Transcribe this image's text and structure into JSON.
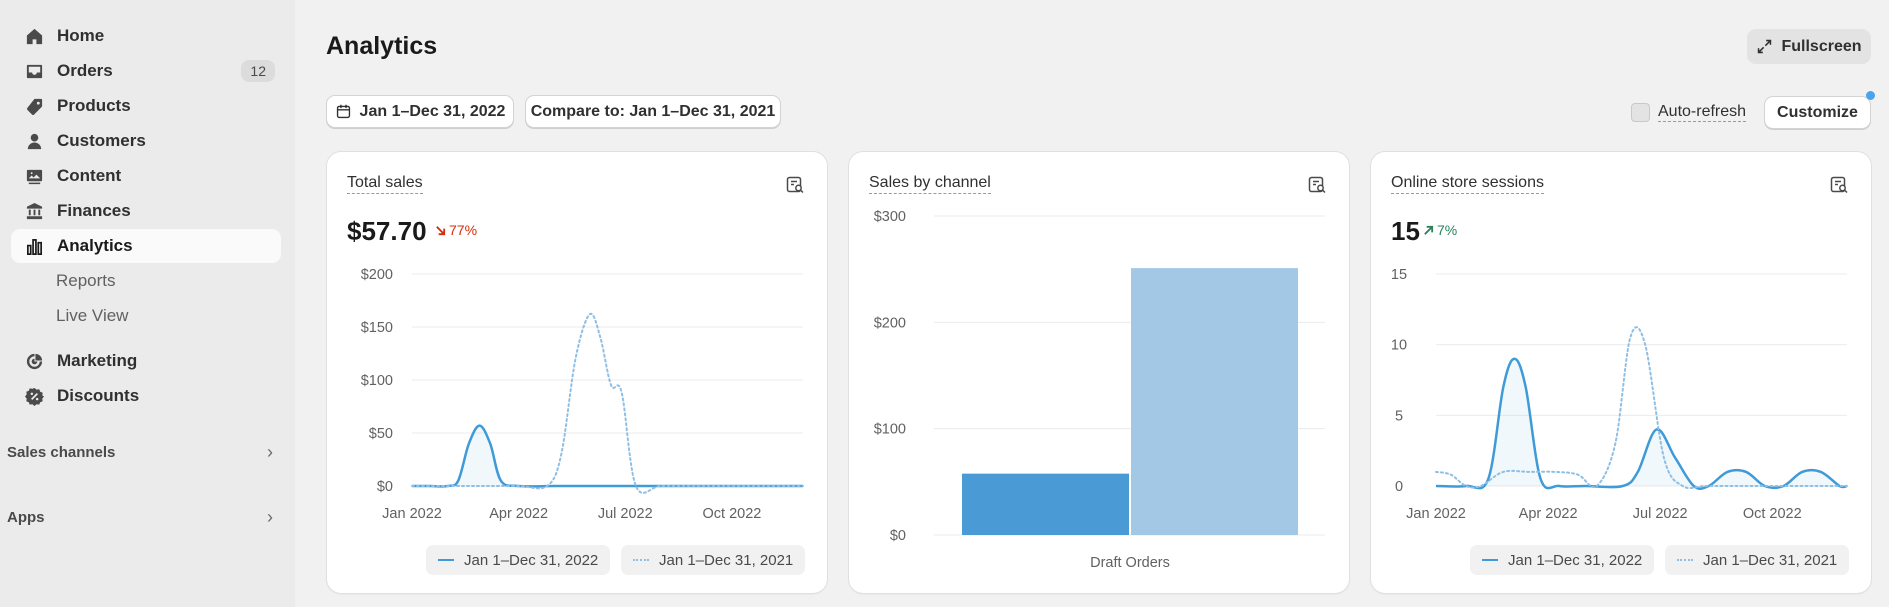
{
  "sidebar": {
    "items": [
      {
        "label": "Home",
        "icon": "home-icon"
      },
      {
        "label": "Orders",
        "icon": "inbox-icon",
        "badge": "12"
      },
      {
        "label": "Products",
        "icon": "tag-icon"
      },
      {
        "label": "Customers",
        "icon": "person-icon"
      },
      {
        "label": "Content",
        "icon": "image-icon"
      },
      {
        "label": "Finances",
        "icon": "bank-icon"
      },
      {
        "label": "Analytics",
        "icon": "bar-chart-icon",
        "active": true
      }
    ],
    "subitems": [
      "Reports",
      "Live View"
    ],
    "items2": [
      {
        "label": "Marketing",
        "icon": "target-icon"
      },
      {
        "label": "Discounts",
        "icon": "discount-icon"
      }
    ],
    "sections": [
      "Sales channels",
      "Apps"
    ]
  },
  "header": {
    "title": "Analytics",
    "fullscreen_label": "Fullscreen",
    "date_range_label": "Jan 1–Dec 31, 2022",
    "compare_label": "Compare to: Jan 1–Dec 31, 2021",
    "auto_refresh_label": "Auto-refresh",
    "auto_refresh_checked": false,
    "customize_label": "Customize"
  },
  "colors": {
    "primary_series": "#3f9ad8",
    "comparison_series": "#8fbfe4",
    "bar_primary": "#4a9ad6",
    "bar_secondary": "#a3c8e6",
    "negative": "#d72c0d",
    "positive": "#29845a"
  },
  "cards": {
    "total_sales": {
      "title": "Total sales",
      "value": "$57.70",
      "delta": "77%",
      "delta_direction": "down"
    },
    "sales_by_channel": {
      "title": "Sales by channel"
    },
    "sessions": {
      "title": "Online store sessions",
      "value": "15",
      "delta": "7%",
      "delta_direction": "up"
    },
    "legend": {
      "current": "Jan 1–Dec 31, 2022",
      "previous": "Jan 1–Dec 31, 2021"
    }
  },
  "chart_data": [
    {
      "type": "line",
      "title": "Total sales",
      "xlabel": "",
      "ylabel": "",
      "x_ticks": [
        "Jan 2022",
        "Apr 2022",
        "Jul 2022",
        "Oct 2022"
      ],
      "y_ticks": [
        "$0",
        "$50",
        "$100",
        "$150",
        "$200"
      ],
      "ylim": [
        0,
        200
      ],
      "grid": true,
      "series": [
        {
          "name": "Jan 1–Dec 31, 2022",
          "style": "solid",
          "x": [
            0,
            0.5,
            1,
            1.3,
            1.6,
            1.9,
            2.2,
            2.5,
            3,
            4,
            5,
            6,
            7,
            8,
            9,
            10,
            11
          ],
          "y": [
            0,
            0,
            0,
            5,
            40,
            57,
            40,
            5,
            0,
            0,
            0,
            0,
            0,
            0,
            0,
            0,
            0
          ]
        },
        {
          "name": "Jan 1–Dec 31, 2021",
          "style": "dotted",
          "x": [
            0,
            1,
            2,
            3,
            3.8,
            4.2,
            4.6,
            5.0,
            5.3,
            5.6,
            5.9,
            6.3,
            7,
            8,
            9,
            10,
            11
          ],
          "y": [
            0,
            0,
            0,
            0,
            0,
            30,
            120,
            162,
            140,
            95,
            88,
            0,
            0,
            0,
            0,
            0,
            0
          ]
        }
      ]
    },
    {
      "type": "bar",
      "title": "Sales by channel",
      "categories": [
        "Draft Orders"
      ],
      "y_ticks": [
        "$0",
        "$100",
        "$200",
        "$300"
      ],
      "ylim": [
        0,
        300
      ],
      "grid": true,
      "series": [
        {
          "name": "Jan 1–Dec 31, 2022",
          "values": [
            57.7
          ]
        },
        {
          "name": "Jan 1–Dec 31, 2021",
          "values": [
            251
          ]
        }
      ]
    },
    {
      "type": "line",
      "title": "Online store sessions",
      "xlabel": "",
      "ylabel": "",
      "x_ticks": [
        "Jan 2022",
        "Apr 2022",
        "Jul 2022",
        "Oct 2022"
      ],
      "y_ticks": [
        "0",
        "5",
        "10",
        "15"
      ],
      "ylim": [
        0,
        15
      ],
      "grid": true,
      "series": [
        {
          "name": "Jan 1–Dec 31, 2022",
          "style": "solid",
          "x": [
            0,
            0.8,
            1.4,
            1.8,
            2.1,
            2.4,
            2.8,
            3.3,
            4,
            5,
            5.4,
            5.9,
            6.4,
            6.9,
            7.3,
            7.8,
            8.3,
            8.8,
            9.3,
            9.8,
            10.3,
            10.8,
            11
          ],
          "y": [
            0,
            0,
            0.5,
            7,
            9,
            7,
            0.5,
            0,
            0,
            0,
            1,
            4,
            2,
            0,
            0,
            1,
            1,
            0,
            0,
            1,
            1,
            0,
            0
          ]
        },
        {
          "name": "Jan 1–Dec 31, 2021",
          "style": "dotted",
          "x": [
            0,
            0.4,
            0.8,
            1.2,
            1.8,
            2.5,
            3.2,
            3.8,
            4.3,
            4.8,
            5.2,
            5.6,
            6.1,
            6.6,
            7.2,
            8,
            9,
            10,
            11
          ],
          "y": [
            1,
            0.8,
            0,
            0,
            1,
            1,
            1,
            0.8,
            0,
            3,
            10.5,
            10,
            2,
            0,
            0,
            0,
            0,
            0,
            0
          ]
        }
      ]
    }
  ]
}
